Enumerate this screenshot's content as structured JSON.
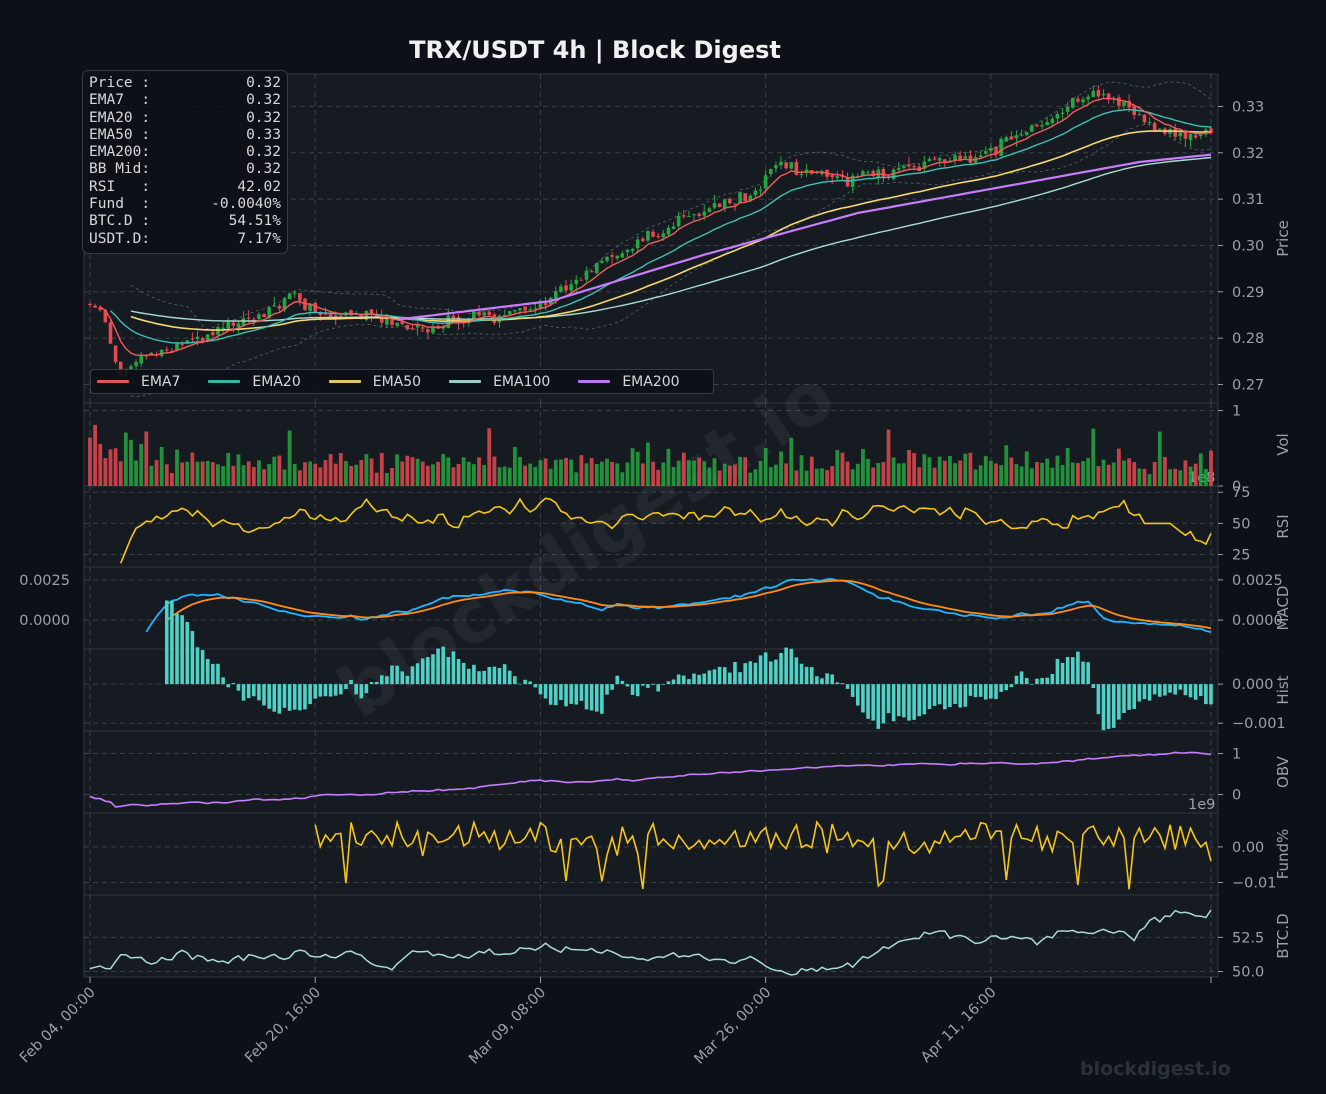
{
  "title": "TRX/USDT  4h  |  Block Digest",
  "watermark": "blockdigest.io",
  "colors": {
    "background": "#0d1117",
    "panel": "#161b22",
    "grid": "#3a4048",
    "axis_text": "#9aa0a6",
    "up": "#26a641",
    "down": "#e5484d",
    "ema7": "#f05c5c",
    "ema20": "#3fbfb3",
    "ema50": "#f5d76e",
    "ema100": "#a8dcd1",
    "ema200": "#c77dff",
    "rsi": "#f5c518",
    "macd": "#1fb6ff",
    "signal": "#ff8c1a",
    "hist": "#4fd1c5",
    "obv": "#c77dff",
    "funding": "#f5c518",
    "btcd": "#a8dcd1"
  },
  "info_box": [
    {
      "label": "Price :",
      "value": "0.32"
    },
    {
      "label": "EMA7  :",
      "value": "0.32"
    },
    {
      "label": "EMA20 :",
      "value": "0.32"
    },
    {
      "label": "EMA50 :",
      "value": "0.33"
    },
    {
      "label": "EMA200:",
      "value": "0.32"
    },
    {
      "label": "BB Mid:",
      "value": "0.32"
    },
    {
      "label": "RSI   :",
      "value": "42.02"
    },
    {
      "label": "Fund  :",
      "value": "-0.0040%"
    },
    {
      "label": "BTC.D :",
      "value": "54.51%"
    },
    {
      "label": "USDT.D:",
      "value": "7.17%"
    }
  ],
  "legend": [
    {
      "name": "EMA7",
      "color": "#f05c5c"
    },
    {
      "name": "EMA20",
      "color": "#3fbfb3"
    },
    {
      "name": "EMA50",
      "color": "#f5d76e"
    },
    {
      "name": "EMA100",
      "color": "#a8dcd1"
    },
    {
      "name": "EMA200",
      "color": "#c77dff"
    }
  ],
  "chart_data": {
    "type": "line",
    "x_ticks": [
      "Feb 04, 00:00",
      "Feb 20, 16:00",
      "Mar 09, 08:00",
      "Mar 26, 00:00",
      "Apr 11, 16:00"
    ],
    "panels": [
      {
        "id": "price",
        "ylabel": "Price",
        "ylim": [
          0.266,
          0.337
        ],
        "yticks": [
          "0.27",
          "0.28",
          "0.29",
          "0.30",
          "0.31",
          "0.32",
          "0.33"
        ],
        "ytick_values": [
          0.27,
          0.28,
          0.29,
          0.3,
          0.31,
          0.32,
          0.33
        ],
        "price_anchors": [
          [
            0,
            0.287
          ],
          [
            2,
            0.286
          ],
          [
            6,
            0.272
          ],
          [
            10,
            0.276
          ],
          [
            16,
            0.278
          ],
          [
            22,
            0.28
          ],
          [
            28,
            0.283
          ],
          [
            35,
            0.286
          ],
          [
            40,
            0.289
          ],
          [
            45,
            0.285
          ],
          [
            52,
            0.285
          ],
          [
            60,
            0.283
          ],
          [
            66,
            0.282
          ],
          [
            72,
            0.284
          ],
          [
            80,
            0.285
          ],
          [
            88,
            0.287
          ],
          [
            95,
            0.293
          ],
          [
            102,
            0.298
          ],
          [
            110,
            0.302
          ],
          [
            118,
            0.307
          ],
          [
            124,
            0.309
          ],
          [
            130,
            0.312
          ],
          [
            134,
            0.318
          ],
          [
            140,
            0.316
          ],
          [
            148,
            0.314
          ],
          [
            156,
            0.316
          ],
          [
            164,
            0.318
          ],
          [
            172,
            0.319
          ],
          [
            180,
            0.323
          ],
          [
            186,
            0.326
          ],
          [
            192,
            0.331
          ],
          [
            198,
            0.333
          ],
          [
            204,
            0.328
          ],
          [
            210,
            0.324
          ],
          [
            216,
            0.324
          ],
          [
            219,
            0.324
          ]
        ],
        "ema200_anchors": [
          [
            60,
            0.284
          ],
          [
            90,
            0.288
          ],
          [
            120,
            0.298
          ],
          [
            150,
            0.307
          ],
          [
            180,
            0.313
          ],
          [
            205,
            0.318
          ],
          [
            219,
            0.3196
          ]
        ]
      },
      {
        "id": "vol",
        "ylabel": "Vol",
        "ylim": [
          0,
          1.1
        ],
        "yticks": [
          "0",
          "1"
        ],
        "ytick_values": [
          0,
          1
        ],
        "exponent": "1e8"
      },
      {
        "id": "rsi",
        "ylabel": "RSI",
        "ylim": [
          15,
          80
        ],
        "yticks": [
          "25",
          "50",
          "75"
        ],
        "ytick_values": [
          25,
          50,
          75
        ]
      },
      {
        "id": "macd",
        "ylabel": "MACD",
        "ylim": [
          -0.0018,
          0.0033
        ],
        "yticks": [
          "0.0000",
          "0.0025"
        ],
        "ytick_values": [
          0.0,
          0.0025
        ],
        "left_yticks": [
          "0.0000",
          "0.0025"
        ]
      },
      {
        "id": "hist",
        "ylabel": "Hist",
        "ylim": [
          -0.0012,
          0.0009
        ],
        "yticks": [
          "−0.001",
          "0.000"
        ],
        "ytick_values": [
          -0.001,
          0.0
        ]
      },
      {
        "id": "obv",
        "ylabel": "OBV",
        "ylim": [
          -0.45,
          1.55
        ],
        "yticks": [
          "0",
          "1"
        ],
        "ytick_values": [
          0,
          1
        ],
        "exponent": "1e9"
      },
      {
        "id": "fund",
        "ylabel": "Fund%",
        "ylim": [
          -0.0135,
          0.0095
        ],
        "yticks": [
          "−0.01",
          "0.00"
        ],
        "ytick_values": [
          -0.01,
          0.0
        ]
      },
      {
        "id": "btcd",
        "ylabel": "BTC.D",
        "ylim": [
          49.6,
          55.6
        ],
        "yticks": [
          "50.0",
          "52.5"
        ],
        "ytick_values": [
          50.0,
          52.5
        ]
      }
    ]
  }
}
